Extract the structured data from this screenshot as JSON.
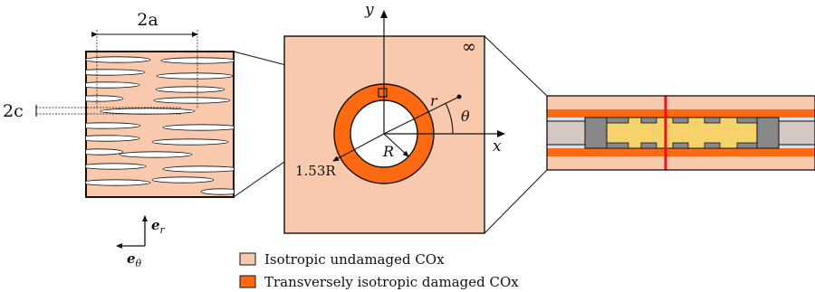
{
  "colors": {
    "undamaged": "#f9c9ad",
    "damaged": "#ff6a10",
    "gallery_core": "#f6d36a",
    "steel": "#888888",
    "casing": "#d5c7c2",
    "gap_blue": "#cfe3f3",
    "cut_line": "#e8121b"
  },
  "labels": {
    "two_a": "2a",
    "two_c": "2c",
    "y_axis": "y",
    "x_axis": "x",
    "r": "r",
    "theta": "θ",
    "infinity": "∞",
    "R": "R",
    "outer_radius": "1.53R",
    "e_r": "e",
    "e_r_sub": "r",
    "e_theta": "e",
    "e_theta_sub": "θ"
  },
  "legend": [
    {
      "label": "Isotropic undamaged COx",
      "color": "#f9c9ad"
    },
    {
      "label": "Transversely isotropic damaged COx",
      "color": "#ff6a10"
    }
  ],
  "icons": {
    "axes": "arrow-icon",
    "basis": "basis-vector-icon"
  }
}
